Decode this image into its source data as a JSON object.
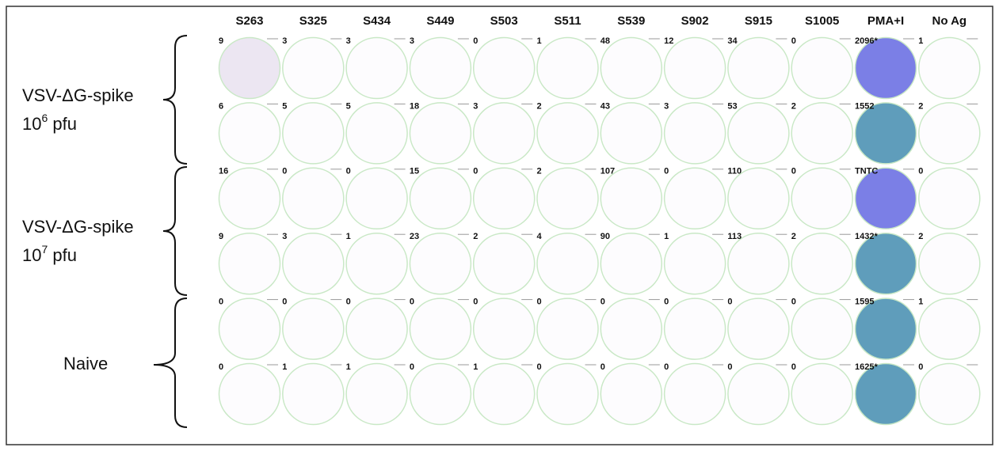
{
  "columns": [
    "S263",
    "S325",
    "S434",
    "S449",
    "S503",
    "S511",
    "S539",
    "S902",
    "S915",
    "S1005",
    "PMA+I",
    "No Ag"
  ],
  "groups": [
    {
      "line1": "VSV-ΔG-spike",
      "base": "10",
      "exponent": "6",
      "unit": " pfu"
    },
    {
      "line1": "VSV-ΔG-spike",
      "base": "10",
      "exponent": "7",
      "unit": " pfu"
    },
    {
      "line1": "Naive"
    }
  ],
  "wells": [
    [
      "9",
      "3",
      "3",
      "3",
      "0",
      "1",
      "48",
      "12",
      "34",
      "0",
      "2096*",
      "1"
    ],
    [
      "6",
      "5",
      "5",
      "18",
      "3",
      "2",
      "43",
      "3",
      "53",
      "2",
      "1552",
      "2"
    ],
    [
      "16",
      "0",
      "0",
      "15",
      "0",
      "2",
      "107",
      "0",
      "110",
      "0",
      "TNTC",
      "0"
    ],
    [
      "9",
      "3",
      "1",
      "23",
      "2",
      "4",
      "90",
      "1",
      "113",
      "2",
      "1432*",
      "2"
    ],
    [
      "0",
      "0",
      "0",
      "0",
      "0",
      "0",
      "0",
      "0",
      "0",
      "0",
      "1595",
      "1"
    ],
    [
      "0",
      "1",
      "1",
      "0",
      "1",
      "0",
      "0",
      "0",
      "0",
      "0",
      "1625*",
      "0"
    ]
  ]
}
